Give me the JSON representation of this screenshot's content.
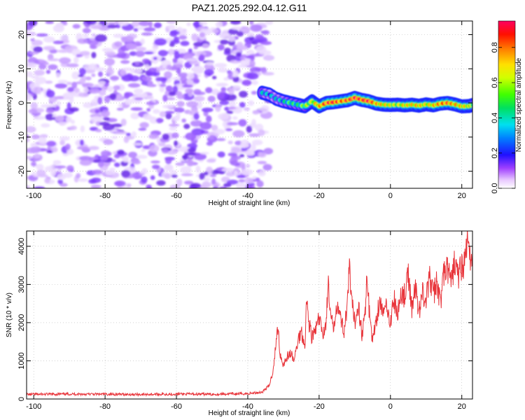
{
  "figure": {
    "title": "PAZ1.2025.292.04.12.G11"
  },
  "chart_data": [
    {
      "type": "heatmap",
      "title": "PAZ1.2025.292.04.12.G11",
      "xlabel": "Height of straight line (km)",
      "ylabel": "Frequency (Hz)",
      "xlim": [
        -102,
        23
      ],
      "ylim": [
        -25,
        24
      ],
      "x_ticks": [
        -100,
        -80,
        -60,
        -40,
        -20,
        0,
        20
      ],
      "y_ticks": [
        -20,
        -10,
        0,
        10,
        20
      ],
      "grid": true,
      "noise_region": {
        "x_range": [
          -102,
          -34
        ],
        "y_range": [
          -25,
          24
        ],
        "amplitude_range": [
          0.0,
          0.1
        ]
      },
      "signal_track": {
        "x": [
          -36,
          -34,
          -32,
          -30,
          -28,
          -26,
          -24,
          -22,
          -20,
          -18,
          -16,
          -14,
          -12,
          -10,
          -8,
          -6,
          -4,
          -2,
          0,
          2,
          4,
          6,
          8,
          10,
          12,
          14,
          16,
          18,
          20,
          22,
          23
        ],
        "frequency": [
          3.0,
          2.5,
          1.2,
          0.5,
          0.0,
          -0.5,
          -1.0,
          0.5,
          -1.0,
          0.0,
          0.2,
          0.5,
          0.8,
          1.5,
          0.9,
          0.5,
          -0.2,
          -0.5,
          -0.6,
          -0.5,
          -0.7,
          -0.5,
          -0.8,
          -0.4,
          -0.7,
          -0.2,
          0.0,
          -0.4,
          -1.0,
          -0.9,
          -0.6
        ],
        "amplitude": [
          0.35,
          0.3,
          0.3,
          0.35,
          0.45,
          0.4,
          0.55,
          0.6,
          0.75,
          0.85,
          0.92,
          0.8,
          0.85,
          0.9,
          0.88,
          0.92,
          0.75,
          0.7,
          0.65,
          0.6,
          0.68,
          0.7,
          0.72,
          0.65,
          0.7,
          0.8,
          0.82,
          0.75,
          0.7,
          0.65,
          0.6
        ]
      },
      "colorbar": {
        "label": "Normalized spectral amplitude",
        "range": [
          0.0,
          0.95
        ],
        "ticks": [
          "0.0",
          "0.2",
          "0.4",
          "0.6",
          "0.8"
        ]
      }
    },
    {
      "type": "line",
      "title": "",
      "xlabel": "Height of straight line (km)",
      "ylabel": "SNR (10 * v/v)",
      "xlim": [
        -102,
        23
      ],
      "ylim": [
        0,
        4400
      ],
      "x_ticks": [
        -100,
        -80,
        -60,
        -40,
        -20,
        0,
        20
      ],
      "y_ticks": [
        0,
        1000,
        2000,
        3000,
        4000
      ],
      "grid": true,
      "series": [
        {
          "name": "SNR",
          "color": "#e8343a",
          "x": [
            -102,
            -90,
            -80,
            -70,
            -60,
            -50,
            -40,
            -36,
            -34,
            -33,
            -32,
            -31.5,
            -31,
            -30,
            -29,
            -28,
            -27,
            -26,
            -25,
            -24,
            -23.5,
            -23,
            -22,
            -21,
            -20,
            -19,
            -18,
            -17.5,
            -17,
            -16,
            -15,
            -14,
            -13,
            -12,
            -11.5,
            -11,
            -10,
            -9,
            -8,
            -7,
            -6.5,
            -6,
            -5,
            -4,
            -3,
            -2,
            -1,
            0,
            1,
            2,
            3,
            4,
            5,
            6,
            7,
            8,
            9,
            10,
            11,
            12,
            13,
            14,
            15,
            16,
            17,
            18,
            19,
            20,
            21,
            21.8,
            22,
            22.5,
            23
          ],
          "values": [
            120,
            130,
            125,
            120,
            130,
            125,
            140,
            180,
            350,
            700,
            1500,
            1950,
            1200,
            900,
            1100,
            1200,
            1000,
            1500,
            1800,
            1400,
            2600,
            2100,
            1600,
            1800,
            2100,
            1700,
            2000,
            3100,
            2300,
            1800,
            2600,
            2100,
            1800,
            2500,
            3500,
            2600,
            2000,
            2500,
            1700,
            2300,
            3300,
            2400,
            1500,
            2100,
            2600,
            2200,
            2500,
            2000,
            2600,
            2200,
            2800,
            2700,
            3200,
            2400,
            2900,
            2300,
            2800,
            2600,
            3200,
            2700,
            3100,
            2500,
            3300,
            3400,
            3000,
            3600,
            3200,
            3500,
            3600,
            4400,
            3800,
            3600,
            3900
          ]
        }
      ]
    }
  ]
}
